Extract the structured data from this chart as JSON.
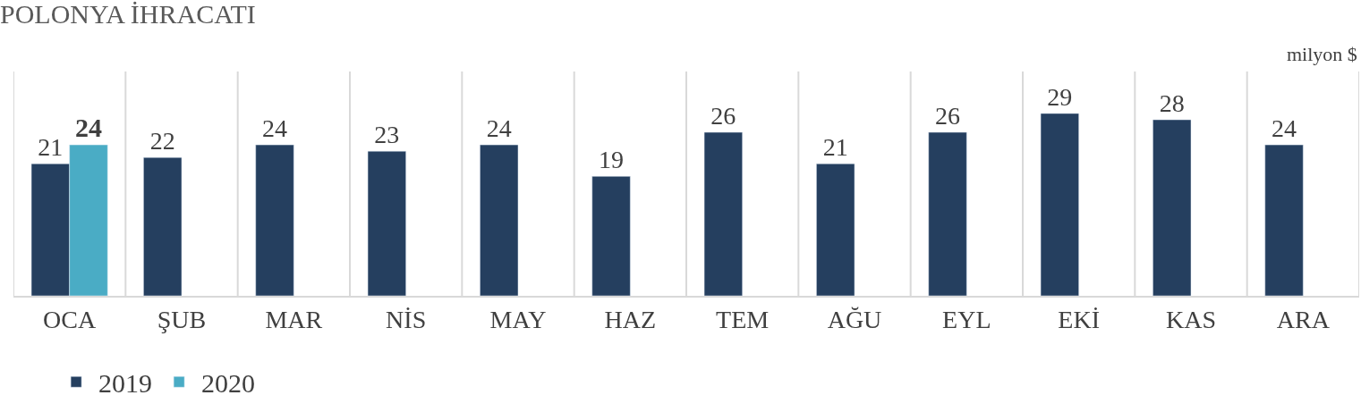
{
  "chart_data": {
    "type": "bar",
    "title": "POLONYA İHRACATI",
    "annotations": [
      "milyon $"
    ],
    "categories": [
      "OCA",
      "ŞUB",
      "MAR",
      "NİS",
      "MAY",
      "HAZ",
      "TEM",
      "AĞU",
      "EYL",
      "EKİ",
      "KAS",
      "ARA"
    ],
    "series": [
      {
        "name": "2019",
        "color": "#253f5f",
        "values": [
          21,
          22,
          24,
          23,
          24,
          19,
          26,
          21,
          26,
          29,
          28,
          24
        ]
      },
      {
        "name": "2020",
        "color": "#4aacc5",
        "values": [
          24,
          null,
          null,
          null,
          null,
          null,
          null,
          null,
          null,
          null,
          null,
          null
        ]
      }
    ],
    "data_labels": true,
    "grid": "x",
    "legend": "bottom left"
  }
}
